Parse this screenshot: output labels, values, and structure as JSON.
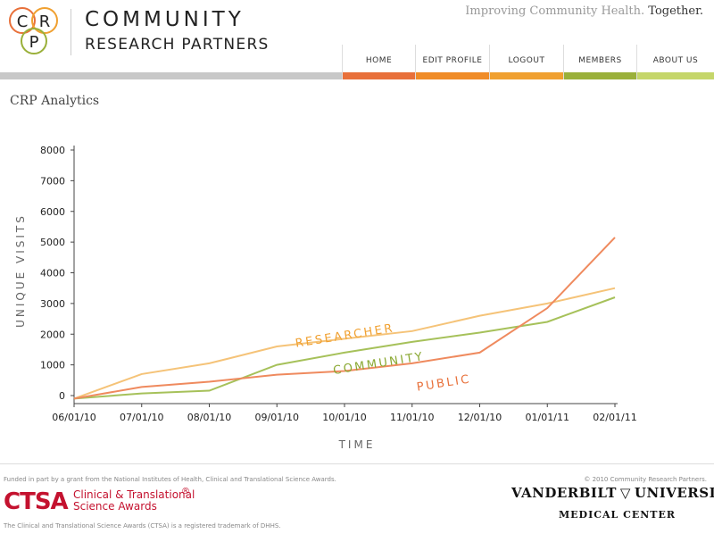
{
  "brand": {
    "logo_letters": [
      "C",
      "R",
      "P"
    ],
    "name_top": "COMMUNITY",
    "name_bottom": "RESEARCH PARTNERS",
    "tagline_main": "Improving Community Health.",
    "tagline_emphasis": "Together.",
    "colors": {
      "orange": "#e8703a",
      "amber": "#f0a030",
      "green": "#9ab03a",
      "lightgreen": "#c5d66a",
      "gray": "#c8c8c8"
    }
  },
  "nav": {
    "items": [
      {
        "label": "HOME",
        "color": "#e8703a"
      },
      {
        "label": "EDIT PROFILE",
        "color": "#f08c28"
      },
      {
        "label": "LOGOUT",
        "color": "#f0a030"
      },
      {
        "label": "MEMBERS",
        "color": "#9ab03a"
      },
      {
        "label": "ABOUT US",
        "color": "#c5d66a"
      }
    ]
  },
  "page": {
    "title": "CRP Analytics"
  },
  "chart_data": {
    "type": "line",
    "title": "",
    "xlabel": "TIME",
    "ylabel": "UNIQUE VISITS",
    "ylim": [
      0,
      8000
    ],
    "yticks": [
      0,
      1000,
      2000,
      3000,
      4000,
      5000,
      6000,
      7000,
      8000
    ],
    "categories": [
      "06/01/10",
      "07/01/10",
      "08/01/10",
      "09/01/10",
      "10/01/10",
      "11/01/10",
      "12/01/10",
      "01/01/11",
      "02/01/11"
    ],
    "series": [
      {
        "name": "RESEARCHER",
        "color": "#f5c378",
        "values": [
          -100,
          700,
          1050,
          1600,
          1850,
          2100,
          2600,
          3000,
          3500
        ]
      },
      {
        "name": "COMMUNITY",
        "color": "#a6c15a",
        "values": [
          -100,
          70,
          160,
          1000,
          1400,
          1750,
          2050,
          2400,
          3200
        ]
      },
      {
        "name": "PUBLIC",
        "color": "#ef8a5e",
        "values": [
          -100,
          280,
          450,
          680,
          800,
          1050,
          1400,
          2850,
          5150
        ]
      }
    ]
  },
  "footer": {
    "funded": "Funded in part by a grant from the National Institutes of Health, Clinical and Translational Science Awards.",
    "copyright": "© 2010 Community Research Partners.",
    "ctsa_logo": "CTSA",
    "ctsa_line1": "Clinical & Translational",
    "ctsa_line2": "Science Awards",
    "ctsa_reg": "®",
    "ctsa_note": "The Clinical and Translational Science Awards (CTSA) is a registered trademark of DHHS.",
    "vandy_left": "VANDERBILT",
    "vandy_right": "UNIVERSITY",
    "vandy_sub": "MEDICAL CENTER"
  }
}
